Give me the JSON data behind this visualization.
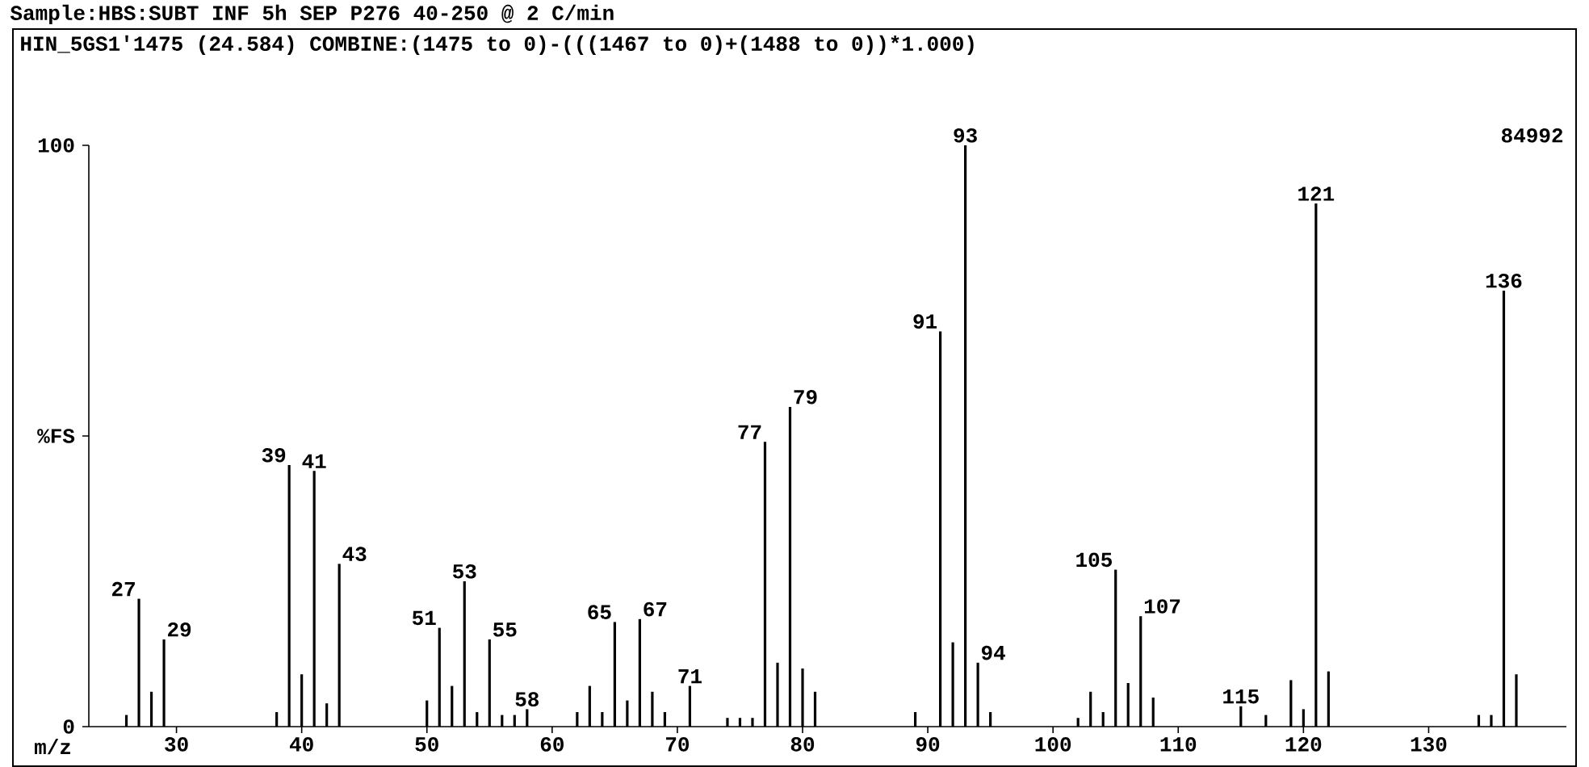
{
  "chart_data": {
    "type": "bar",
    "title": "Sample:HBS:SUBT INF 5h SEP    P276 40-250 @ 2 C/min",
    "subtitle": "HIN_5GS1'1475 (24.584)  COMBINE:(1475 to 0)-(((1467 to 0)+(1488 to 0))*1.000)",
    "xlabel": "m/z",
    "color": "#000000",
    "x": [
      26,
      27,
      28,
      29,
      38,
      39,
      40,
      41,
      42,
      43,
      50,
      51,
      52,
      53,
      54,
      55,
      56,
      57,
      58,
      62,
      63,
      64,
      65,
      66,
      67,
      68,
      69,
      71,
      74,
      75,
      76,
      77,
      78,
      79,
      80,
      81,
      89,
      91,
      92,
      93,
      94,
      95,
      102,
      103,
      104,
      105,
      106,
      107,
      108,
      115,
      117,
      119,
      120,
      121,
      122,
      134,
      135,
      136,
      137
    ],
    "values": [
      2,
      22,
      6,
      15,
      2.5,
      45,
      9,
      44,
      4,
      28,
      4.5,
      17,
      7,
      25,
      2.5,
      15,
      2,
      2,
      3,
      2.5,
      7,
      2.5,
      18,
      4.5,
      18.5,
      6,
      2.5,
      7,
      1.5,
      1.5,
      1.5,
      49,
      11,
      55,
      10,
      6,
      2.5,
      68,
      14.5,
      100,
      11,
      2.5,
      1.5,
      6,
      2.5,
      27,
      7.5,
      19,
      5,
      3.5,
      2,
      8,
      3,
      90,
      9.5,
      2,
      2,
      75,
      9
    ],
    "xlim": [
      23,
      141
    ],
    "ylim": [
      0,
      100
    ],
    "xticks": [
      30,
      40,
      50,
      60,
      70,
      80,
      90,
      100,
      110,
      120,
      130
    ],
    "yticks": [
      0,
      {
        "value": 50,
        "label": "%FS"
      },
      100
    ],
    "annotations": [
      {
        "text": "27",
        "x": 27,
        "y": 22
      },
      {
        "text": "29",
        "x": 29,
        "y": 15
      },
      {
        "text": "39",
        "x": 39,
        "y": 45
      },
      {
        "text": "41",
        "x": 41,
        "y": 44
      },
      {
        "text": "43",
        "x": 43,
        "y": 28
      },
      {
        "text": "51",
        "x": 51,
        "y": 17
      },
      {
        "text": "53",
        "x": 53,
        "y": 25
      },
      {
        "text": "55",
        "x": 55,
        "y": 15
      },
      {
        "text": "58",
        "x": 58,
        "y": 3
      },
      {
        "text": "65",
        "x": 65,
        "y": 18
      },
      {
        "text": "67",
        "x": 67,
        "y": 18.5
      },
      {
        "text": "71",
        "x": 71,
        "y": 7
      },
      {
        "text": "77",
        "x": 77,
        "y": 49
      },
      {
        "text": "79",
        "x": 79,
        "y": 55
      },
      {
        "text": "91",
        "x": 91,
        "y": 68
      },
      {
        "text": "93",
        "x": 93,
        "y": 100
      },
      {
        "text": "94",
        "x": 94,
        "y": 11
      },
      {
        "text": "105",
        "x": 105,
        "y": 27
      },
      {
        "text": "107",
        "x": 107,
        "y": 19
      },
      {
        "text": "115",
        "x": 115,
        "y": 3.5
      },
      {
        "text": "121",
        "x": 121,
        "y": 90
      },
      {
        "text": "136",
        "x": 136,
        "y": 75
      },
      "84992"
    ]
  }
}
